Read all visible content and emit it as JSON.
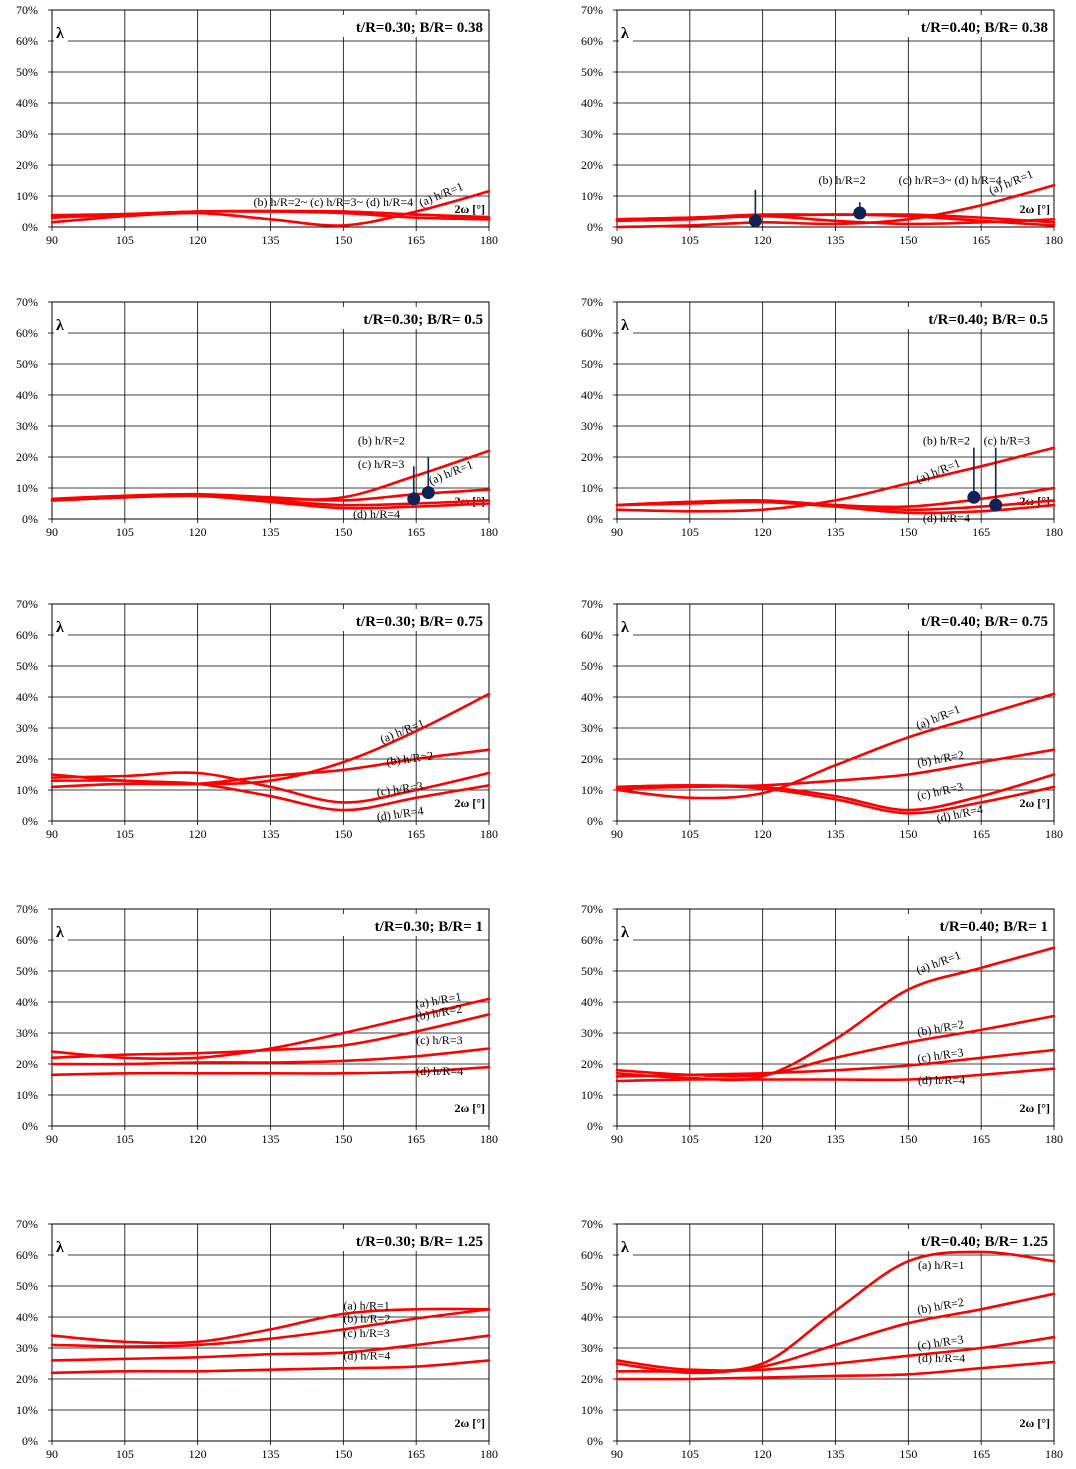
{
  "figure": {
    "y_tick_labels": [
      "0%",
      "10%",
      "20%",
      "30%",
      "40%",
      "50%",
      "60%",
      "70%"
    ],
    "x_tick_labels": [
      "90",
      "105",
      "120",
      "135",
      "150",
      "165",
      "180"
    ],
    "ylabel": "λ",
    "xlabel": "2ω [°]",
    "line_color": "#ff0000",
    "marker_color": "#0d2356"
  },
  "chart_data": [
    {
      "type": "line",
      "title": "t/R=0.30; B/R= 0.38",
      "xlabel": "2ω [°]",
      "ylabel": "λ",
      "xlim": [
        90,
        180
      ],
      "ylim": [
        0,
        70
      ],
      "grid": true,
      "series": [
        {
          "name": "(a) h/R=1",
          "x": [
            90,
            105,
            120,
            135,
            150,
            165,
            180
          ],
          "y": [
            1.5,
            3.5,
            4.5,
            2.5,
            0.5,
            5,
            11.5
          ]
        },
        {
          "name": "(b) h/R=2~",
          "x": [
            90,
            105,
            120,
            135,
            150,
            165,
            180
          ],
          "y": [
            3,
            4,
            5,
            5,
            4.5,
            3,
            2.5
          ]
        },
        {
          "name": "(c) h/R=3~",
          "x": [
            90,
            105,
            120,
            135,
            150,
            165,
            180
          ],
          "y": [
            3.5,
            4,
            5,
            5,
            5,
            4,
            3
          ]
        },
        {
          "name": "(d) h/R=4",
          "x": [
            90,
            105,
            120,
            135,
            150,
            165,
            180
          ],
          "y": [
            3.8,
            4.2,
            5,
            5.2,
            5,
            4,
            3.2
          ]
        }
      ],
      "annotations": [
        "(b) h/R=2~ (c) h/R=3~ (d) h/R=4",
        "(a) h/R=1"
      ]
    },
    {
      "type": "line",
      "title": "t/R=0.40; B/R= 0.38",
      "xlabel": "2ω [°]",
      "ylabel": "λ",
      "xlim": [
        90,
        180
      ],
      "ylim": [
        0,
        70
      ],
      "grid": true,
      "series": [
        {
          "name": "(a) h/R=1",
          "x": [
            90,
            105,
            120,
            135,
            150,
            165,
            180
          ],
          "y": [
            0,
            0.5,
            1.5,
            1,
            2.5,
            7,
            13.5
          ]
        },
        {
          "name": "(b) h/R=2",
          "x": [
            90,
            105,
            120,
            135,
            150,
            165,
            180
          ],
          "y": [
            2,
            2.5,
            3.5,
            2,
            1,
            1.5,
            2.5
          ]
        },
        {
          "name": "(c) h/R=3~",
          "x": [
            90,
            105,
            120,
            135,
            150,
            165,
            180
          ],
          "y": [
            2.5,
            3,
            4,
            4,
            4,
            3,
            1.5
          ]
        },
        {
          "name": "(d) h/R=4",
          "x": [
            90,
            105,
            120,
            135,
            150,
            165,
            180
          ],
          "y": [
            2.5,
            3,
            3.5,
            4,
            3.5,
            2,
            0.5
          ]
        }
      ],
      "markers": [
        {
          "x": 118.5,
          "y": 2
        },
        {
          "x": 140,
          "y": 4.5
        }
      ],
      "annotations": [
        "(b) h/R=2",
        "(c) h/R=3~ (d) h/R=4",
        "(a) h/R=1"
      ]
    },
    {
      "type": "line",
      "title": "t/R=0.30; B/R= 0.5",
      "xlabel": "2ω [°]",
      "ylabel": "λ",
      "xlim": [
        90,
        180
      ],
      "ylim": [
        0,
        70
      ],
      "grid": true,
      "series": [
        {
          "name": "(a) h/R=1",
          "x": [
            90,
            105,
            120,
            135,
            150,
            165,
            180
          ],
          "y": [
            6,
            7,
            7.5,
            6.5,
            7,
            14,
            22
          ]
        },
        {
          "name": "(b) h/R=2",
          "x": [
            90,
            105,
            120,
            135,
            150,
            165,
            180
          ],
          "y": [
            6.5,
            7.5,
            8,
            7,
            6,
            8,
            9.5
          ]
        },
        {
          "name": "(c) h/R=3",
          "x": [
            90,
            105,
            120,
            135,
            150,
            165,
            180
          ],
          "y": [
            6,
            7,
            7.5,
            6,
            4.5,
            5,
            6
          ]
        },
        {
          "name": "(d) h/R=4",
          "x": [
            90,
            105,
            120,
            135,
            150,
            165,
            180
          ],
          "y": [
            6,
            7,
            7.5,
            5.5,
            3.5,
            4,
            5
          ]
        }
      ],
      "markers": [
        {
          "x": 164.5,
          "y": 6.5
        },
        {
          "x": 167.5,
          "y": 8.5
        }
      ],
      "annotations": [
        "(b) h/R=2",
        "(c) h/R=3",
        "(a) h/R=1",
        "(d) h/R=4"
      ]
    },
    {
      "type": "line",
      "title": "t/R=0.40; B/R= 0.5",
      "xlabel": "2ω [°]",
      "ylabel": "λ",
      "xlim": [
        90,
        180
      ],
      "ylim": [
        0,
        70
      ],
      "grid": true,
      "series": [
        {
          "name": "(a) h/R=1",
          "x": [
            90,
            105,
            120,
            135,
            150,
            165,
            180
          ],
          "y": [
            3,
            2.5,
            3,
            6,
            11.5,
            17,
            23
          ]
        },
        {
          "name": "(b) h/R=2",
          "x": [
            90,
            105,
            120,
            135,
            150,
            165,
            180
          ],
          "y": [
            4.5,
            5.5,
            6,
            4.5,
            4,
            6.5,
            10
          ]
        },
        {
          "name": "(c) h/R=3",
          "x": [
            90,
            105,
            120,
            135,
            150,
            165,
            180
          ],
          "y": [
            4.5,
            5.5,
            5.5,
            4.5,
            3,
            4,
            6
          ]
        },
        {
          "name": "(d) h/R=4",
          "x": [
            90,
            105,
            120,
            135,
            150,
            165,
            180
          ],
          "y": [
            4.5,
            5,
            5.5,
            4,
            2,
            2.5,
            4.5
          ]
        }
      ],
      "markers": [
        {
          "x": 163.5,
          "y": 7
        },
        {
          "x": 168,
          "y": 4.5
        }
      ],
      "annotations": [
        "(b) h/R=2",
        "(c) h/R=3",
        "(a) h/R=1",
        "(d) h/R=4"
      ]
    },
    {
      "type": "line",
      "title": "t/R=0.30; B/R= 0.75",
      "xlabel": "2ω [°]",
      "ylabel": "λ",
      "xlim": [
        90,
        180
      ],
      "ylim": [
        0,
        70
      ],
      "grid": true,
      "series": [
        {
          "name": "(a) h/R=1",
          "x": [
            90,
            105,
            120,
            135,
            150,
            165,
            180
          ],
          "y": [
            13,
            13,
            12,
            13,
            19,
            29,
            41
          ]
        },
        {
          "name": "(b) h/R=2",
          "x": [
            90,
            105,
            120,
            135,
            150,
            165,
            180
          ],
          "y": [
            11,
            12,
            12,
            14.5,
            16.5,
            20,
            23
          ]
        },
        {
          "name": "(c) h/R=3",
          "x": [
            90,
            105,
            120,
            135,
            150,
            165,
            180
          ],
          "y": [
            14,
            14.5,
            15.5,
            11,
            6,
            10,
            15.5
          ]
        },
        {
          "name": "(d) h/R=4",
          "x": [
            90,
            105,
            120,
            135,
            150,
            165,
            180
          ],
          "y": [
            15,
            13,
            12,
            8,
            3.5,
            7.5,
            11.5
          ]
        }
      ],
      "annotations": [
        "(a) h/R=1",
        "(b) h/R=2",
        "(c) h/R=3",
        "(d) h/R=4"
      ]
    },
    {
      "type": "line",
      "title": "t/R=0.40; B/R= 0.75",
      "xlabel": "2ω [°]",
      "ylabel": "λ",
      "xlim": [
        90,
        180
      ],
      "ylim": [
        0,
        70
      ],
      "grid": true,
      "series": [
        {
          "name": "(a) h/R=1",
          "x": [
            90,
            105,
            120,
            135,
            150,
            165,
            180
          ],
          "y": [
            10,
            7.5,
            9,
            18,
            27,
            34,
            41
          ]
        },
        {
          "name": "(b) h/R=2",
          "x": [
            90,
            105,
            120,
            135,
            150,
            165,
            180
          ],
          "y": [
            10.5,
            11,
            11.5,
            13,
            15,
            19,
            23
          ]
        },
        {
          "name": "(c) h/R=3",
          "x": [
            90,
            105,
            120,
            135,
            150,
            165,
            180
          ],
          "y": [
            11,
            11.5,
            11,
            8,
            3.5,
            8,
            15
          ]
        },
        {
          "name": "(d) h/R=4",
          "x": [
            90,
            105,
            120,
            135,
            150,
            165,
            180
          ],
          "y": [
            11,
            11.5,
            10.5,
            7,
            2.5,
            6,
            11
          ]
        }
      ],
      "annotations": [
        "(a) h/R=1",
        "(b) h/R=2",
        "(c) h/R=3",
        "(d) h/R=4"
      ]
    },
    {
      "type": "line",
      "title": "t/R=0.30; B/R= 1",
      "xlabel": "2ω [°]",
      "ylabel": "λ",
      "xlim": [
        90,
        180
      ],
      "ylim": [
        0,
        70
      ],
      "grid": true,
      "series": [
        {
          "name": "(a) h/R=1",
          "x": [
            90,
            105,
            120,
            135,
            150,
            165,
            180
          ],
          "y": [
            24,
            22,
            22,
            25,
            30,
            35.5,
            41
          ]
        },
        {
          "name": "(b) h/R=2",
          "x": [
            90,
            105,
            120,
            135,
            150,
            165,
            180
          ],
          "y": [
            22,
            23,
            23.5,
            24.5,
            26,
            30.5,
            36
          ]
        },
        {
          "name": "(c) h/R=3",
          "x": [
            90,
            105,
            120,
            135,
            150,
            165,
            180
          ],
          "y": [
            20,
            20,
            20.5,
            20.5,
            21,
            22.5,
            25
          ]
        },
        {
          "name": "(d) h/R=4",
          "x": [
            90,
            105,
            120,
            135,
            150,
            165,
            180
          ],
          "y": [
            16.5,
            17,
            17,
            17,
            17,
            17.5,
            19
          ]
        }
      ],
      "annotations": [
        "(a) h/R=1",
        "(b) h/R=2",
        "(c) h/R=3",
        "(d) h/R=4"
      ]
    },
    {
      "type": "line",
      "title": "t/R=0.40; B/R= 1",
      "xlabel": "2ω [°]",
      "ylabel": "λ",
      "xlim": [
        90,
        180
      ],
      "ylim": [
        0,
        70
      ],
      "grid": true,
      "series": [
        {
          "name": "(a) h/R=1",
          "x": [
            90,
            105,
            120,
            135,
            150,
            165,
            180
          ],
          "y": [
            17,
            15.5,
            16,
            28,
            44,
            51,
            57.5
          ]
        },
        {
          "name": "(b) h/R=2",
          "x": [
            90,
            105,
            120,
            135,
            150,
            165,
            180
          ],
          "y": [
            18,
            16.5,
            16.5,
            22,
            27,
            31,
            35.5
          ]
        },
        {
          "name": "(c) h/R=3",
          "x": [
            90,
            105,
            120,
            135,
            150,
            165,
            180
          ],
          "y": [
            16,
            16.5,
            17,
            18,
            19.5,
            22,
            24.5
          ]
        },
        {
          "name": "(d) h/R=4",
          "x": [
            90,
            105,
            120,
            135,
            150,
            165,
            180
          ],
          "y": [
            14.5,
            15,
            15,
            15,
            15,
            16.5,
            18.5
          ]
        }
      ],
      "annotations": [
        "(a) h/R=1",
        "(b) h/R=2",
        "(c) h/R=3",
        "(d) h/R=4"
      ]
    },
    {
      "type": "line",
      "title": "t/R=0.30; B/R= 1.25",
      "xlabel": "2ω [°]",
      "ylabel": "λ",
      "xlim": [
        90,
        180
      ],
      "ylim": [
        0,
        70
      ],
      "grid": true,
      "series": [
        {
          "name": "(a) h/R=1",
          "x": [
            90,
            105,
            120,
            135,
            150,
            165,
            180
          ],
          "y": [
            34,
            32,
            32,
            36,
            41,
            42.5,
            42.5
          ]
        },
        {
          "name": "(b) h/R=2",
          "x": [
            90,
            105,
            120,
            135,
            150,
            165,
            180
          ],
          "y": [
            31,
            30.5,
            31,
            33,
            36,
            39.5,
            42.5
          ]
        },
        {
          "name": "(c) h/R=3",
          "x": [
            90,
            105,
            120,
            135,
            150,
            165,
            180
          ],
          "y": [
            26,
            26.5,
            27,
            28,
            28.5,
            31,
            34
          ]
        },
        {
          "name": "(d) h/R=4",
          "x": [
            90,
            105,
            120,
            135,
            150,
            165,
            180
          ],
          "y": [
            22,
            22.5,
            22.5,
            23,
            23.5,
            24,
            26
          ]
        }
      ],
      "annotations": [
        "(a) h/R=1",
        "(b) h/R=2",
        "(c) h/R=3",
        "(d) h/R=4"
      ]
    },
    {
      "type": "line",
      "title": "t/R=0.40; B/R= 1.25",
      "xlabel": "2ω [°]",
      "ylabel": "λ",
      "xlim": [
        90,
        180
      ],
      "ylim": [
        0,
        70
      ],
      "grid": true,
      "series": [
        {
          "name": "(a) h/R=1",
          "x": [
            90,
            105,
            120,
            135,
            150,
            165,
            180
          ],
          "y": [
            26,
            23,
            25,
            42,
            58,
            61,
            58
          ]
        },
        {
          "name": "(b) h/R=2",
          "x": [
            90,
            105,
            120,
            135,
            150,
            165,
            180
          ],
          "y": [
            25,
            22,
            24,
            31,
            38,
            42.5,
            47.5
          ]
        },
        {
          "name": "(c) h/R=3",
          "x": [
            90,
            105,
            120,
            135,
            150,
            165,
            180
          ],
          "y": [
            22.5,
            22.5,
            23,
            25,
            27.5,
            30,
            33.5
          ]
        },
        {
          "name": "(d) h/R=4",
          "x": [
            90,
            105,
            120,
            135,
            150,
            165,
            180
          ],
          "y": [
            20,
            20,
            20.5,
            21,
            21.5,
            23.5,
            25.5
          ]
        }
      ],
      "annotations": [
        "(a) h/R=1",
        "(b) h/R=2",
        "(c) h/R=3",
        "(d) h/R=4"
      ]
    }
  ]
}
